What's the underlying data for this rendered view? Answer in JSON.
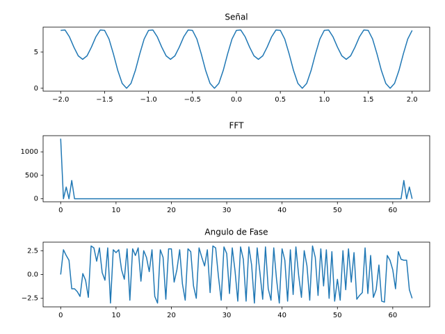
{
  "chart_data": [
    {
      "type": "line",
      "title": "Señal",
      "color": "#1f77b4",
      "x": [
        -2,
        -1.95,
        -1.9,
        -1.85,
        -1.8,
        -1.75,
        -1.7,
        -1.65,
        -1.6,
        -1.55,
        -1.5,
        -1.45,
        -1.4,
        -1.35,
        -1.3,
        -1.25,
        -1.2,
        -1.15,
        -1.1,
        -1.05,
        -1,
        -0.95,
        -0.9,
        -0.85,
        -0.8,
        -0.75,
        -0.7,
        -0.65,
        -0.6,
        -0.55,
        -0.5,
        -0.45,
        -0.4,
        -0.35,
        -0.3,
        -0.25,
        -0.2,
        -0.15,
        -0.1,
        -0.05,
        0,
        0.05,
        0.1,
        0.15,
        0.2,
        0.25,
        0.3,
        0.35,
        0.4,
        0.45,
        0.5,
        0.55,
        0.6,
        0.65,
        0.7,
        0.75,
        0.8,
        0.85,
        0.9,
        0.95,
        1,
        1.05,
        1.1,
        1.15,
        1.2,
        1.25,
        1.3,
        1.35,
        1.4,
        1.45,
        1.5,
        1.55,
        1.6,
        1.65,
        1.7,
        1.75,
        1.8,
        1.85,
        1.9,
        1.95,
        2
      ],
      "values": [
        8,
        8.05,
        7.1,
        5.69,
        4.48,
        4,
        4.48,
        5.69,
        7.1,
        8.05,
        8,
        6.81,
        4.75,
        2.46,
        0.67,
        0,
        0.67,
        2.46,
        4.75,
        6.81,
        8,
        8.05,
        7.1,
        5.69,
        4.48,
        4,
        4.48,
        5.69,
        7.1,
        8.05,
        8,
        6.81,
        4.75,
        2.46,
        0.67,
        0,
        0.67,
        2.46,
        4.75,
        6.81,
        8,
        8.05,
        7.1,
        5.69,
        4.48,
        4,
        4.48,
        5.69,
        7.1,
        8.05,
        8,
        6.81,
        4.75,
        2.46,
        0.67,
        0,
        0.67,
        2.46,
        4.75,
        6.81,
        8,
        8.05,
        7.1,
        5.69,
        4.48,
        4,
        4.48,
        5.69,
        7.1,
        8.05,
        8,
        6.81,
        4.75,
        2.46,
        0.67,
        0,
        0.67,
        2.46,
        4.75,
        6.81,
        8
      ],
      "xlim": [
        -2.2,
        2.2
      ],
      "ylim": [
        -0.4,
        8.45
      ],
      "xticks": [
        {
          "value": -2,
          "label": "−2.0"
        },
        {
          "value": -1.5,
          "label": "−1.5"
        },
        {
          "value": -1,
          "label": "−1.0"
        },
        {
          "value": -0.5,
          "label": "−0.5"
        },
        {
          "value": 0,
          "label": "0.0"
        },
        0.5,
        {
          "value": 1,
          "label": "1.0"
        },
        1.5,
        {
          "value": 2,
          "label": "2.0"
        }
      ],
      "yticks": [
        0,
        5
      ]
    },
    {
      "type": "line",
      "title": "FFT",
      "color": "#1f77b4",
      "x": [
        0,
        0.5,
        1,
        1.5,
        2,
        2.5,
        3,
        3.5,
        4,
        4.5,
        5,
        5.5,
        6,
        6.5,
        7,
        7.5,
        8,
        8.5,
        9,
        9.5,
        10,
        10.5,
        11,
        11.5,
        12,
        12.5,
        13,
        13.5,
        14,
        14.5,
        15,
        15.5,
        16,
        16.5,
        17,
        17.5,
        18,
        18.5,
        19,
        19.5,
        20,
        20.5,
        21,
        21.5,
        22,
        22.5,
        23,
        23.5,
        24,
        24.5,
        25,
        25.5,
        26,
        26.5,
        27,
        27.5,
        28,
        28.5,
        29,
        29.5,
        30,
        30.5,
        31,
        31.5,
        32,
        32.5,
        33,
        33.5,
        34,
        34.5,
        35,
        35.5,
        36,
        36.5,
        37,
        37.5,
        38,
        38.5,
        39,
        39.5,
        40,
        40.5,
        41,
        41.5,
        42,
        42.5,
        43,
        43.5,
        44,
        44.5,
        45,
        45.5,
        46,
        46.5,
        47,
        47.5,
        48,
        48.5,
        49,
        49.5,
        50,
        50.5,
        51,
        51.5,
        52,
        52.5,
        53,
        53.5,
        54,
        54.5,
        55,
        55.5,
        56,
        56.5,
        57,
        57.5,
        58,
        58.5,
        59,
        59.5,
        60,
        60.5,
        61,
        61.5,
        62,
        62.5,
        63,
        63.5
      ],
      "values": [
        1280,
        0,
        250,
        0,
        390,
        0,
        0,
        0,
        0,
        0,
        0,
        0,
        0,
        0,
        0,
        0,
        0,
        0,
        0,
        0,
        0,
        0,
        0,
        0,
        0,
        0,
        0,
        0,
        0,
        0,
        0,
        0,
        0,
        0,
        0,
        0,
        0,
        0,
        0,
        0,
        0,
        0,
        0,
        0,
        0,
        0,
        0,
        0,
        0,
        0,
        0,
        0,
        0,
        0,
        0,
        0,
        0,
        0,
        0,
        0,
        0,
        0,
        0,
        0,
        0,
        0,
        0,
        0,
        0,
        0,
        0,
        0,
        0,
        0,
        0,
        0,
        0,
        0,
        0,
        0,
        0,
        0,
        0,
        0,
        0,
        0,
        0,
        0,
        0,
        0,
        0,
        0,
        0,
        0,
        0,
        0,
        0,
        0,
        0,
        0,
        0,
        0,
        0,
        0,
        0,
        0,
        0,
        0,
        0,
        0,
        0,
        0,
        0,
        0,
        0,
        0,
        0,
        0,
        0,
        0,
        0,
        0,
        0,
        0,
        390,
        0,
        250,
        0
      ],
      "xlim": [
        -3.175,
        66.675
      ],
      "ylim": [
        -64,
        1344
      ],
      "xticks": [
        0,
        10,
        20,
        30,
        40,
        50,
        60
      ],
      "yticks": [
        0,
        500,
        1000
      ]
    },
    {
      "type": "line",
      "title": "Angulo de Fase",
      "color": "#1f77b4",
      "x": [
        0,
        0.5,
        1,
        1.5,
        2,
        2.5,
        3,
        3.5,
        4,
        4.5,
        5,
        5.5,
        6,
        6.5,
        7,
        7.5,
        8,
        8.5,
        9,
        9.5,
        10,
        10.5,
        11,
        11.5,
        12,
        12.5,
        13,
        13.5,
        14,
        14.5,
        15,
        15.5,
        16,
        16.5,
        17,
        17.5,
        18,
        18.5,
        19,
        19.5,
        20,
        20.5,
        21,
        21.5,
        22,
        22.5,
        23,
        23.5,
        24,
        24.5,
        25,
        25.5,
        26,
        26.5,
        27,
        27.5,
        28,
        28.5,
        29,
        29.5,
        30,
        30.5,
        31,
        31.5,
        32,
        32.5,
        33,
        33.5,
        34,
        34.5,
        35,
        35.5,
        36,
        36.5,
        37,
        37.5,
        38,
        38.5,
        39,
        39.5,
        40,
        40.5,
        41,
        41.5,
        42,
        42.5,
        43,
        43.5,
        44,
        44.5,
        45,
        45.5,
        46,
        46.5,
        47,
        47.5,
        48,
        48.5,
        49,
        49.5,
        50,
        50.5,
        51,
        51.5,
        52,
        52.5,
        53,
        53.5,
        54,
        54.5,
        55,
        55.5,
        56,
        56.5,
        57,
        57.5,
        58,
        58.5,
        59,
        59.5,
        60,
        60.5,
        61,
        61.5,
        62,
        62.5,
        63,
        63.5
      ],
      "values": [
        0.0,
        2.6,
        2.0,
        1.5,
        -1.5,
        -1.5,
        -1.8,
        -2.3,
        0.1,
        -0.6,
        -2.4,
        3.0,
        2.8,
        1.4,
        2.8,
        0.2,
        -0.6,
        2.8,
        -3.0,
        2.6,
        2.3,
        2.6,
        0.5,
        -0.5,
        2.7,
        -2.7,
        2.7,
        2.0,
        2.8,
        -0.7,
        2.5,
        1.8,
        0.3,
        2.6,
        -2.3,
        -3.0,
        2.6,
        1.8,
        -2.6,
        2.7,
        2.7,
        -0.8,
        0.5,
        2.6,
        -1.0,
        -2.7,
        2.7,
        2.4,
        -1.2,
        -2.5,
        2.8,
        1.8,
        0.9,
        2.6,
        -1.9,
        3.0,
        2.8,
        -0.2,
        -2.7,
        2.9,
        2.2,
        -2.0,
        2.8,
        0.4,
        -2.8,
        2.9,
        1.6,
        -2.8,
        2.9,
        1.0,
        -3.0,
        2.8,
        0.2,
        -2.6,
        2.9,
        -1.5,
        -2.7,
        2.8,
        -0.5,
        -3.0,
        2.7,
        1.5,
        -2.8,
        2.6,
        -2.1,
        2.9,
        -0.1,
        -2.4,
        2.5,
        0.9,
        -2.7,
        3.0,
        1.8,
        -2.2,
        2.7,
        -1.2,
        2.6,
        -2.5,
        2.4,
        -2.8,
        -0.5,
        -2.7,
        2.5,
        -1.6,
        2.7,
        -0.8,
        2.3,
        -2.6,
        -2.2,
        -1.9,
        2.8,
        -2.0,
        2.0,
        -2.4,
        -1.6,
        1.0,
        -2.8,
        -2.9,
        2.0,
        1.5,
        0.5,
        -1.5,
        2.4,
        1.6,
        1.5,
        1.5,
        -1.6,
        -2.5
      ],
      "xlim": [
        -3.175,
        66.675
      ],
      "ylim": [
        -3.4,
        3.4
      ],
      "xticks": [
        0,
        10,
        20,
        30,
        40,
        50,
        60
      ],
      "yticks": [
        {
          "value": -2.5,
          "label": "−2.5"
        },
        {
          "value": 0,
          "label": "0.0"
        },
        2.5
      ]
    }
  ]
}
